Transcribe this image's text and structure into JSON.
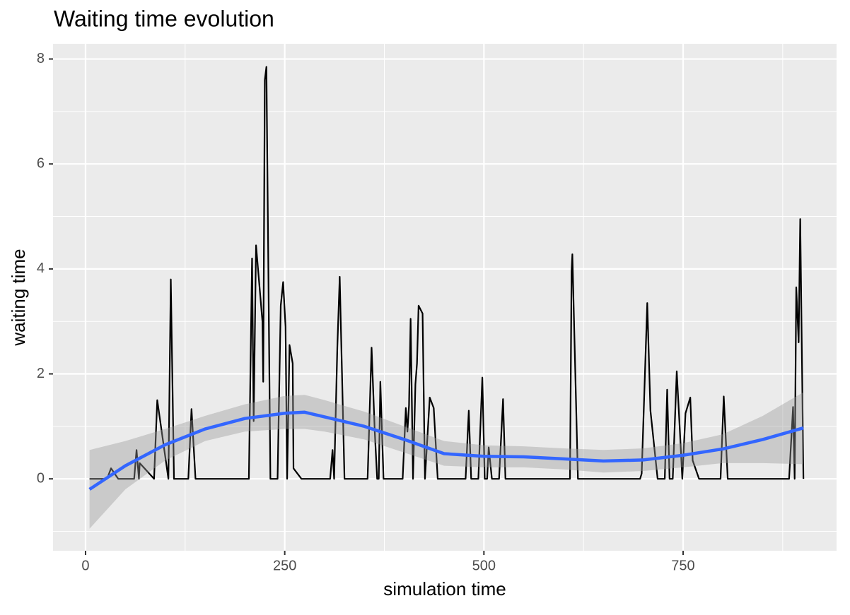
{
  "chart_data": {
    "type": "line",
    "title": "Waiting time evolution",
    "x_label": "simulation time",
    "y_label": "waiting time",
    "xlim": [
      -40.8,
      942.6
    ],
    "ylim": [
      -1.37,
      8.29
    ],
    "xticks": [
      0,
      250,
      500,
      750
    ],
    "yticks": [
      0,
      2,
      4,
      6,
      8
    ],
    "xminor": [
      125,
      375,
      625,
      875
    ],
    "yminor": [
      -1,
      1,
      3,
      5,
      7
    ],
    "grid": true,
    "band_color": "#999999",
    "series": [
      {
        "color": "#000000",
        "x": [
          5,
          27,
          32,
          41,
          61,
          64,
          67,
          68,
          86,
          90,
          104,
          107,
          111,
          129,
          133,
          138,
          205,
          209,
          211,
          214,
          222,
          223,
          225,
          227,
          232,
          241,
          245,
          248,
          251,
          253,
          256,
          260,
          261,
          271,
          307,
          310,
          312,
          316,
          319,
          325,
          354,
          359,
          363,
          366,
          368,
          370,
          374,
          398,
          402,
          404,
          406,
          408,
          411,
          414,
          416,
          418,
          423,
          426,
          432,
          437,
          442,
          477,
          481,
          484,
          493,
          498,
          501,
          504,
          506,
          510,
          519,
          524,
          527,
          608,
          610,
          611,
          618,
          696,
          698,
          705,
          709,
          718,
          727,
          730,
          733,
          737,
          742,
          746,
          749,
          753,
          759,
          762,
          770,
          797,
          801,
          806,
          883,
          888,
          890,
          892,
          895,
          897,
          901
        ],
        "values": [
          0,
          0,
          0.2,
          0,
          0,
          0.55,
          0,
          0.3,
          0,
          1.5,
          0,
          3.8,
          0,
          0,
          1.33,
          0,
          0,
          4.2,
          1.1,
          4.45,
          3.0,
          1.85,
          7.6,
          7.85,
          0,
          0,
          3.3,
          3.75,
          2.9,
          0,
          2.55,
          2.2,
          0.2,
          0,
          0,
          0.55,
          0,
          2.5,
          3.85,
          0,
          0,
          2.5,
          0.9,
          0,
          0,
          1.85,
          0,
          0,
          1.35,
          0.9,
          1.4,
          3.05,
          0,
          1.8,
          2.2,
          3.3,
          3.15,
          0,
          1.55,
          1.35,
          0,
          0,
          1.3,
          0,
          0,
          1.93,
          0,
          0,
          0.6,
          0,
          0,
          1.52,
          0,
          0,
          3.95,
          4.28,
          0,
          0,
          0.1,
          3.35,
          1.3,
          0,
          0,
          1.7,
          0,
          0,
          2.05,
          0.9,
          0,
          1.25,
          1.55,
          0.35,
          0,
          0,
          1.57,
          0,
          0,
          1.37,
          0,
          3.65,
          2.6,
          4.95,
          0
        ]
      },
      {
        "color": "#3366ff",
        "x": [
          5,
          50,
          100,
          150,
          200,
          250,
          275,
          300,
          350,
          400,
          450,
          500,
          550,
          600,
          650,
          700,
          750,
          800,
          850,
          901
        ],
        "values": [
          -0.2,
          0.25,
          0.65,
          0.95,
          1.15,
          1.25,
          1.27,
          1.18,
          1.0,
          0.75,
          0.48,
          0.43,
          0.42,
          0.38,
          0.34,
          0.36,
          0.45,
          0.57,
          0.75,
          0.97
        ],
        "lower": [
          -0.95,
          -0.2,
          0.35,
          0.72,
          0.9,
          0.95,
          0.95,
          0.9,
          0.75,
          0.5,
          0.25,
          0.22,
          0.22,
          0.18,
          0.12,
          0.15,
          0.22,
          0.3,
          0.3,
          0.28
        ],
        "upper": [
          0.55,
          0.72,
          0.95,
          1.2,
          1.42,
          1.58,
          1.6,
          1.5,
          1.28,
          1.0,
          0.72,
          0.64,
          0.62,
          0.58,
          0.55,
          0.58,
          0.68,
          0.85,
          1.2,
          1.65
        ]
      }
    ]
  }
}
